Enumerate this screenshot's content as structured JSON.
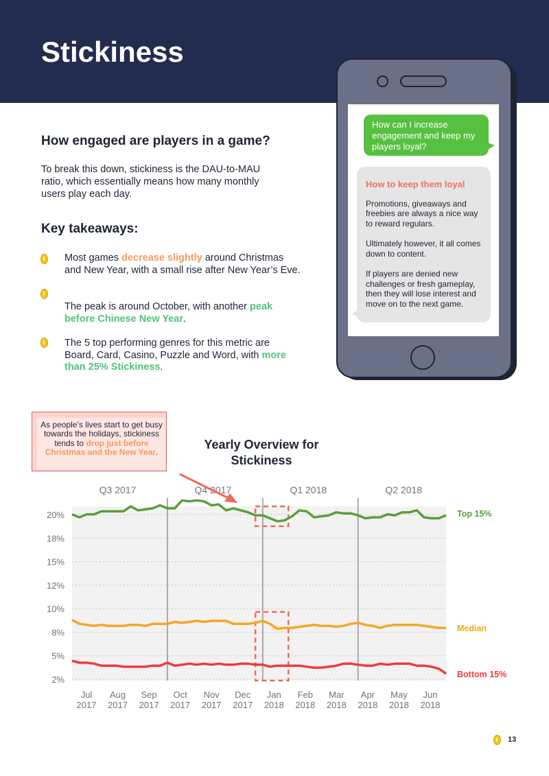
{
  "page": {
    "title": "Stickiness",
    "number": "13"
  },
  "intro": {
    "question": "How engaged are players in a game?",
    "body": "To break this down, stickiness is the DAU-to-MAU ratio, which essentially means how many monthly users play each day."
  },
  "takeaways": {
    "title": "Key takeaways:",
    "bullet1": {
      "pre": "Most games ",
      "highlight": "decrease slightly",
      "post": " around Christmas and New Year, with a small rise after New Year’s Eve."
    },
    "bullet2": {
      "pre": "The peak is around October, with another ",
      "highlight": "peak before Chinese New Year",
      "post": "."
    },
    "bullet3": {
      "pre": "The 5 top performing genres for this metric are Board, Card, Casino, Puzzle and Word, with ",
      "highlight": "more than 25% Stickiness",
      "post": "."
    }
  },
  "phone": {
    "question": "How can I increase engagement and keep my players loyal?",
    "answer_title": "How to keep them loyal",
    "answer_p1": "Promotions, giveaways and freebies are always a nice way to reward regulars.",
    "answer_p2": "Ultimately however, it all comes down to content.",
    "answer_p3": "If players are denied new challenges or fresh gameplay, then they will lose interest and move on to the next game."
  },
  "callout": {
    "pre": "As people’s lives start to get busy towards the holidays, stickiness tends to ",
    "highlight": "drop just before Christmas and the New Year",
    "post": "."
  },
  "colors": {
    "top15": "#5a9e3c",
    "median": "#f5a623",
    "bottom15": "#ef3b3b",
    "navy": "#222c4f",
    "highlight_box": "#ef6a55"
  },
  "chart_data": {
    "type": "line",
    "title": "Yearly Overview for Stickiness",
    "quarters": [
      "Q3 2017",
      "Q4 2017",
      "Q1 2018",
      "Q2 2018"
    ],
    "x_ticks": [
      [
        "Jul",
        "2017"
      ],
      [
        "Aug",
        "2017"
      ],
      [
        "Sep",
        "2017"
      ],
      [
        "Oct",
        "2017"
      ],
      [
        "Nov",
        "2017"
      ],
      [
        "Dec",
        "2017"
      ],
      [
        "Jan",
        "2018"
      ],
      [
        "Feb",
        "2018"
      ],
      [
        "Mar",
        "2018"
      ],
      [
        "Apr",
        "2018"
      ],
      [
        "May",
        "2018"
      ],
      [
        "Jun",
        "2018"
      ]
    ],
    "y_ticks": [
      "20%",
      "18%",
      "15%",
      "12%",
      "10%",
      "8%",
      "5%",
      "2%"
    ],
    "ylim": [
      2.5,
      20.0
    ],
    "x_range_weeks": [
      0,
      51
    ],
    "series": [
      {
        "name": "Top 15%",
        "values": [
          19.2,
          18.9,
          19.2,
          19.2,
          19.5,
          19.5,
          19.5,
          19.5,
          20.0,
          19.6,
          19.7,
          19.8,
          20.1,
          19.8,
          19.8,
          20.6,
          20.5,
          20.6,
          20.5,
          20.1,
          20.2,
          19.6,
          19.8,
          19.6,
          19.4,
          19.1,
          19.1,
          18.8,
          18.5,
          18.6,
          19.0,
          19.6,
          19.5,
          18.9,
          19.0,
          19.1,
          19.4,
          19.3,
          19.3,
          19.1,
          18.8,
          18.9,
          18.9,
          19.2,
          19.1,
          19.4,
          19.4,
          19.6,
          18.9,
          18.8,
          18.8,
          19.1
        ]
      },
      {
        "name": "Median",
        "values": [
          8.6,
          8.2,
          8.1,
          8.0,
          8.1,
          8.0,
          8.0,
          8.0,
          8.1,
          8.1,
          8.0,
          8.2,
          8.2,
          8.2,
          8.4,
          8.3,
          8.4,
          8.5,
          8.4,
          8.5,
          8.5,
          8.5,
          8.2,
          8.2,
          8.2,
          8.3,
          8.5,
          8.2,
          7.7,
          7.8,
          7.8,
          7.9,
          8.0,
          8.1,
          8.0,
          8.0,
          7.9,
          8.0,
          8.2,
          8.3,
          8.1,
          8.0,
          7.8,
          8.0,
          8.1,
          8.1,
          8.1,
          8.1,
          8.0,
          7.9,
          7.8,
          7.8
        ]
      },
      {
        "name": "Bottom 15%",
        "values": [
          4.5,
          4.3,
          4.3,
          4.2,
          4.0,
          4.0,
          4.0,
          3.9,
          3.9,
          3.9,
          3.9,
          4.0,
          4.0,
          4.3,
          4.0,
          4.1,
          4.2,
          4.1,
          4.2,
          4.1,
          4.2,
          4.1,
          4.1,
          4.2,
          4.2,
          4.1,
          4.1,
          3.9,
          4.0,
          4.0,
          4.0,
          4.0,
          3.9,
          3.8,
          3.8,
          3.9,
          4.0,
          4.2,
          4.2,
          4.1,
          4.0,
          4.0,
          4.2,
          4.1,
          4.2,
          4.2,
          4.2,
          4.0,
          4.0,
          3.9,
          3.7,
          3.2
        ]
      }
    ],
    "highlight_boxes": [
      {
        "series": "Top 15%",
        "x_weeks": [
          25,
          29.5
        ],
        "y": [
          18.0,
          20.0
        ]
      },
      {
        "series": "Median",
        "x_weeks": [
          25,
          29.5
        ],
        "y": [
          2.5,
          9.4
        ]
      }
    ],
    "grid": true,
    "legend": "right end of lines"
  }
}
